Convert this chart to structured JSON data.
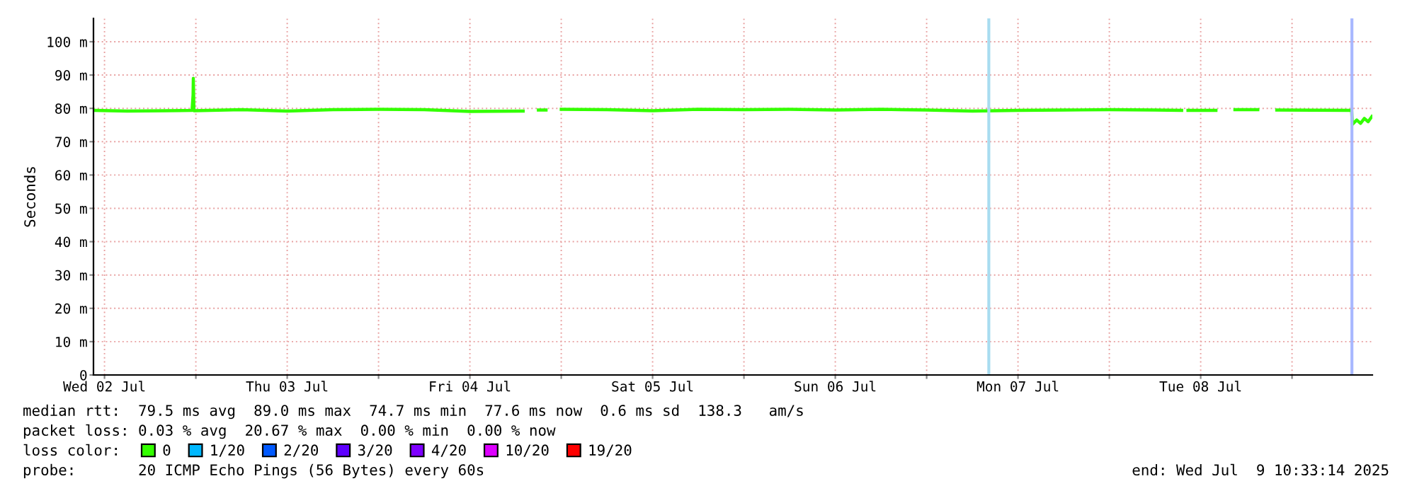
{
  "chart_data": {
    "type": "line",
    "ylabel": "Seconds",
    "x": [
      "2025-07-02T10:40",
      "2025-07-02T15:00",
      "2025-07-02T20:00",
      "2025-07-02T23:30",
      "2025-07-02T23:38",
      "2025-07-02T23:40",
      "2025-07-02T23:45",
      "2025-07-03T06:00",
      "2025-07-03T12:00",
      "2025-07-03T18:00",
      "2025-07-04T00:00",
      "2025-07-04T06:00",
      "2025-07-04T12:00",
      "2025-07-04T19:00",
      "2025-07-04T19:40",
      "2025-07-04T21:00",
      "2025-07-04T22:00",
      "2025-07-04T22:20",
      "2025-07-05T00:00",
      "2025-07-05T06:00",
      "2025-07-05T12:00",
      "2025-07-05T18:00",
      "2025-07-06T00:00",
      "2025-07-06T06:00",
      "2025-07-06T12:00",
      "2025-07-06T18:00",
      "2025-07-07T00:00",
      "2025-07-07T06:00",
      "2025-07-07T12:00",
      "2025-07-07T18:00",
      "2025-07-08T00:00",
      "2025-07-08T06:00",
      "2025-07-08T09:30",
      "2025-07-08T09:50",
      "2025-07-08T10:20",
      "2025-07-08T14:00",
      "2025-07-08T15:30",
      "2025-07-08T16:30",
      "2025-07-08T19:30",
      "2025-07-08T20:00",
      "2025-07-08T22:00",
      "2025-07-09T07:50",
      "2025-07-09T07:55",
      "2025-07-09T08:30",
      "2025-07-09T09:00",
      "2025-07-09T09:30",
      "2025-07-09T10:00",
      "2025-07-09T10:30"
    ],
    "series": [
      {
        "name": "0",
        "color": "#33ff00",
        "values": [
          79.4,
          79.2,
          79.3,
          79.4,
          84,
          89,
          79.3,
          79.6,
          79.2,
          79.6,
          79.7,
          79.6,
          79.1,
          79.2,
          null,
          79.5,
          79.5,
          null,
          79.7,
          79.6,
          79.3,
          79.7,
          79.6,
          79.7,
          79.5,
          79.7,
          79.5,
          79.2,
          79.4,
          79.5,
          79.6,
          79.5,
          79.4,
          null,
          79.4,
          79.4,
          null,
          79.6,
          79.6,
          null,
          79.5,
          79.4,
          75.2,
          76.5,
          75.5,
          77,
          76,
          77.6
        ]
      },
      {
        "name": "1/20",
        "color": "#00b8ff",
        "values": [
          null,
          null,
          null,
          null,
          null,
          null,
          null,
          null,
          null,
          null,
          null,
          null,
          null,
          null,
          null,
          null,
          null,
          null,
          null,
          null,
          null,
          null,
          null,
          null,
          null,
          null,
          null,
          null,
          null,
          null,
          null,
          null,
          null,
          null,
          null,
          null,
          null,
          null,
          null,
          null,
          null,
          null,
          null,
          null,
          null,
          null,
          null,
          null
        ]
      },
      {
        "name": "2/20",
        "color": "#0059ff",
        "values": [
          null,
          null,
          null,
          null,
          null,
          null,
          null,
          null,
          null,
          null,
          null,
          null,
          null,
          null,
          null,
          null,
          null,
          null,
          null,
          null,
          null,
          null,
          null,
          null,
          null,
          null,
          null,
          null,
          null,
          null,
          null,
          null,
          null,
          null,
          null,
          null,
          null,
          null,
          null,
          null,
          null,
          null,
          null,
          null,
          null,
          null,
          null,
          null
        ]
      },
      {
        "name": "3/20",
        "color": "#5e00ff",
        "values": [
          null,
          null,
          null,
          null,
          null,
          null,
          null,
          null,
          null,
          null,
          null,
          null,
          null,
          null,
          null,
          null,
          null,
          null,
          null,
          null,
          null,
          null,
          null,
          null,
          null,
          null,
          null,
          null,
          null,
          null,
          null,
          null,
          null,
          null,
          null,
          null,
          null,
          null,
          null,
          null,
          null,
          null,
          null,
          null,
          null,
          null,
          null,
          null
        ]
      },
      {
        "name": "4/20",
        "color": "#7e00ff",
        "values": [
          null,
          null,
          null,
          null,
          null,
          null,
          null,
          null,
          null,
          null,
          null,
          null,
          null,
          null,
          null,
          null,
          null,
          null,
          null,
          null,
          null,
          null,
          null,
          null,
          null,
          null,
          null,
          null,
          null,
          null,
          null,
          null,
          null,
          null,
          null,
          null,
          null,
          null,
          null,
          null,
          null,
          null,
          null,
          null,
          null,
          null,
          null,
          null
        ]
      },
      {
        "name": "10/20",
        "color": "#dd00ff",
        "values": [
          null,
          null,
          null,
          null,
          null,
          null,
          null,
          null,
          null,
          null,
          null,
          null,
          null,
          null,
          null,
          null,
          null,
          null,
          null,
          null,
          null,
          null,
          null,
          null,
          null,
          null,
          null,
          null,
          null,
          null,
          null,
          null,
          null,
          null,
          null,
          null,
          null,
          null,
          null,
          null,
          null,
          null,
          null,
          null,
          null,
          null,
          null,
          null
        ]
      },
      {
        "name": "19/20",
        "color": "#ff0000",
        "values": [
          null,
          null,
          null,
          null,
          null,
          null,
          null,
          null,
          null,
          null,
          null,
          null,
          null,
          null,
          null,
          null,
          null,
          null,
          null,
          null,
          null,
          null,
          null,
          null,
          null,
          null,
          null,
          null,
          null,
          null,
          null,
          null,
          null,
          null,
          null,
          null,
          null,
          null,
          null,
          null,
          null,
          null,
          null,
          null,
          null,
          null,
          null,
          null
        ]
      }
    ],
    "legend": "bottom",
    "legend_title": "loss color:",
    "line_style": "solid",
    "marker": "none",
    "grid": true,
    "xlim": [
      "2025-07-02T10:33",
      "2025-07-09T10:33"
    ],
    "xticks": [
      {
        "value": "2025-07-02T12:00",
        "label": "Wed 02 Jul"
      },
      {
        "value": "2025-07-03T00:00",
        "label": null
      },
      {
        "value": "2025-07-03T12:00",
        "label": "Thu 03 Jul"
      },
      {
        "value": "2025-07-04T00:00",
        "label": null
      },
      {
        "value": "2025-07-04T12:00",
        "label": "Fri 04 Jul"
      },
      {
        "value": "2025-07-05T00:00",
        "label": null
      },
      {
        "value": "2025-07-05T12:00",
        "label": "Sat 05 Jul"
      },
      {
        "value": "2025-07-06T00:00",
        "label": null
      },
      {
        "value": "2025-07-06T12:00",
        "label": "Sun 06 Jul"
      },
      {
        "value": "2025-07-07T00:00",
        "label": null
      },
      {
        "value": "2025-07-07T12:00",
        "label": "Mon 07 Jul"
      },
      {
        "value": "2025-07-08T00:00",
        "label": null
      },
      {
        "value": "2025-07-08T12:00",
        "label": "Tue 08 Jul"
      },
      {
        "value": "2025-07-09T00:00",
        "label": null
      }
    ],
    "ylim": [
      0,
      107
    ],
    "yticks": [
      0,
      {
        "value": 10,
        "label": "10 m"
      },
      {
        "value": 20,
        "label": "20 m"
      },
      {
        "value": 30,
        "label": "30 m"
      },
      {
        "value": 40,
        "label": "40 m"
      },
      {
        "value": 50,
        "label": "50 m"
      },
      {
        "value": 60,
        "label": "60 m"
      },
      {
        "value": 70,
        "label": "70 m"
      },
      {
        "value": 80,
        "label": "80 m"
      },
      {
        "value": 90,
        "label": "90 m"
      },
      {
        "value": 100,
        "label": "100 m"
      }
    ],
    "ref_lines": [
      {
        "axis": "x",
        "value": "2025-07-07T08:10",
        "color": "#a8dcf0"
      },
      {
        "axis": "x",
        "value": "2025-07-09T07:52",
        "color": "#a8b8ff"
      }
    ],
    "annotations": [
      "median rtt:  79.5 ms avg  89.0 ms max  74.7 ms min  77.6 ms now  0.6 ms sd  138.3   am/s",
      "packet loss: 0.03 % avg  20.67 % max  0.00 % min  0.00 % now",
      "probe:       20 ICMP Echo Pings (56 Bytes) every 60s",
      "end: Wed Jul  9 10:33:14 2025"
    ]
  }
}
